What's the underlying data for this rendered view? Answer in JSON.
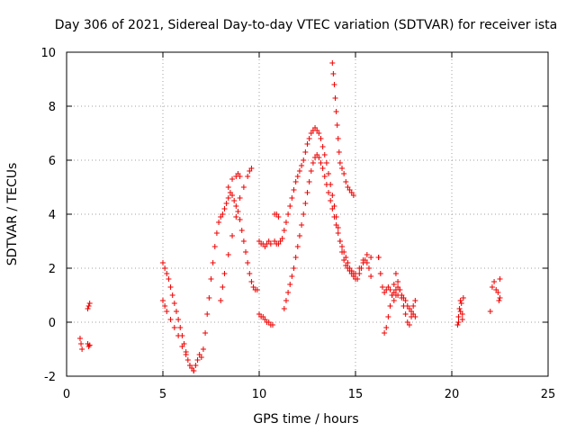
{
  "chart_data": {
    "type": "scatter",
    "title": "Day 306 of 2021, Sidereal Day-to-day VTEC variation (SDTVAR) for receiver ista",
    "xlabel": "GPS time / hours",
    "ylabel": "SDTVAR / TECUs",
    "xlim": [
      0,
      25
    ],
    "ylim": [
      -2,
      10
    ],
    "xticks": [
      "0",
      "5",
      "10",
      "15",
      "20",
      "25"
    ],
    "yticks": [
      "-2",
      "0",
      "2",
      "4",
      "6",
      "8",
      "10"
    ],
    "grid": true,
    "marker": "+",
    "series": [
      {
        "name": "SDTVAR",
        "color": "#ee0000",
        "x": [
          0.7,
          0.75,
          0.8,
          1.1,
          1.15,
          1.2,
          1.1,
          1.15,
          1.2,
          5.0,
          5.1,
          5.2,
          5.3,
          5.4,
          5.5,
          5.6,
          5.7,
          5.8,
          5.9,
          6.0,
          6.1,
          6.2,
          6.3,
          6.4,
          6.5,
          6.6,
          6.7,
          6.8,
          6.9,
          7.0,
          7.1,
          7.2,
          7.3,
          7.4,
          7.5,
          7.6,
          7.7,
          7.8,
          7.9,
          8.0,
          8.1,
          8.2,
          8.3,
          8.4,
          8.5,
          8.6,
          8.7,
          8.8,
          8.9,
          9.0,
          9.1,
          9.2,
          9.3,
          9.4,
          9.5,
          9.6,
          9.7,
          9.8,
          9.9,
          10.0,
          10.1,
          10.2,
          10.3,
          10.4,
          10.5,
          10.6,
          10.7,
          5.0,
          5.1,
          5.2,
          5.4,
          5.6,
          5.8,
          6.0,
          6.2,
          6.4,
          6.6,
          8.0,
          8.1,
          8.2,
          8.4,
          8.6,
          8.8,
          9.0,
          9.2,
          9.4,
          9.5,
          9.6,
          8.4,
          8.6,
          8.8,
          8.9,
          9.0,
          10.0,
          10.1,
          10.2,
          10.3,
          10.4,
          10.5,
          10.6,
          10.8,
          10.9,
          11.0,
          10.8,
          10.9,
          11.0,
          11.1,
          11.2,
          11.3,
          11.4,
          11.5,
          11.6,
          11.7,
          11.8,
          11.9,
          12.0,
          12.1,
          12.2,
          12.3,
          12.4,
          12.5,
          12.6,
          12.7,
          12.8,
          12.9,
          13.0,
          13.1,
          13.2,
          13.3,
          13.4,
          13.5,
          13.6,
          13.7,
          13.8,
          13.9,
          14.0,
          14.1,
          14.2,
          14.3,
          14.4,
          14.5,
          14.6,
          14.7,
          14.8,
          14.9,
          15.0,
          15.1,
          15.2,
          15.3,
          15.4,
          15.5,
          15.6,
          15.7,
          15.8,
          11.3,
          11.4,
          11.5,
          11.6,
          11.7,
          11.8,
          11.9,
          12.0,
          12.1,
          12.2,
          12.3,
          12.4,
          12.5,
          12.6,
          12.7,
          12.8,
          12.9,
          13.0,
          13.1,
          13.2,
          13.3,
          13.4,
          13.5,
          13.6,
          13.7,
          13.8,
          13.9,
          14.0,
          14.1,
          14.2,
          14.3,
          14.4,
          14.5,
          14.6,
          14.7,
          14.8,
          14.9,
          15.0,
          15.2,
          15.4,
          15.6,
          15.8,
          13.8,
          13.85,
          13.9,
          13.95,
          14.0,
          14.05,
          14.1,
          14.15,
          14.2,
          14.3,
          14.4,
          14.5,
          14.6,
          14.7,
          14.8,
          14.9,
          16.2,
          16.3,
          16.4,
          16.5,
          16.6,
          16.7,
          16.8,
          16.9,
          17.0,
          17.1,
          17.2,
          17.3,
          17.4,
          17.5,
          17.6,
          17.7,
          17.8,
          17.9,
          18.0,
          18.1,
          16.5,
          16.6,
          16.7,
          16.8,
          16.9,
          17.0,
          17.1,
          17.2,
          17.3,
          17.4,
          17.5,
          17.6,
          17.7,
          17.8,
          17.9,
          18.0,
          18.1,
          17.0,
          17.1,
          17.2,
          16.2,
          20.3,
          20.35,
          20.4,
          20.45,
          20.5,
          20.55,
          20.6,
          20.35,
          20.45,
          20.55,
          22.0,
          22.1,
          22.2,
          22.3,
          22.4,
          22.45,
          22.5,
          22.5
        ],
        "y": [
          -0.6,
          -0.8,
          -1.0,
          -0.8,
          -0.9,
          -0.85,
          0.5,
          0.6,
          0.7,
          2.2,
          2.0,
          1.8,
          1.6,
          1.3,
          1.0,
          0.7,
          0.4,
          0.1,
          -0.2,
          -0.5,
          -0.8,
          -1.1,
          -1.4,
          -1.6,
          -1.7,
          -1.8,
          -1.6,
          -1.4,
          -1.2,
          -1.3,
          -1.0,
          -0.4,
          0.3,
          0.9,
          1.6,
          2.2,
          2.8,
          3.3,
          3.7,
          3.9,
          4.0,
          4.2,
          4.4,
          4.6,
          4.8,
          4.7,
          4.5,
          4.3,
          4.1,
          3.8,
          3.4,
          3.0,
          2.6,
          2.2,
          1.8,
          1.5,
          1.3,
          1.2,
          1.2,
          0.3,
          0.2,
          0.2,
          0.1,
          0.0,
          0.0,
          -0.1,
          -0.1,
          0.8,
          0.6,
          0.4,
          0.1,
          -0.2,
          -0.5,
          -0.9,
          -1.2,
          -1.6,
          -1.8,
          0.8,
          1.3,
          1.8,
          2.5,
          3.2,
          3.9,
          4.6,
          5.0,
          5.4,
          5.6,
          5.7,
          5.0,
          5.3,
          5.4,
          5.5,
          5.4,
          3.0,
          2.9,
          2.9,
          2.8,
          2.9,
          3.0,
          2.9,
          4.0,
          4.0,
          3.9,
          3.0,
          2.9,
          2.9,
          3.0,
          3.1,
          3.4,
          3.7,
          4.0,
          4.3,
          4.6,
          4.9,
          5.2,
          5.4,
          5.6,
          5.8,
          6.0,
          6.3,
          6.6,
          6.8,
          7.0,
          7.1,
          7.2,
          7.1,
          7.0,
          6.8,
          6.5,
          6.2,
          5.9,
          5.5,
          5.1,
          4.7,
          4.3,
          3.9,
          3.5,
          3.0,
          2.6,
          2.3,
          2.1,
          2.0,
          1.9,
          1.8,
          1.7,
          1.6,
          1.6,
          1.8,
          2.0,
          2.2,
          2.3,
          2.2,
          2.0,
          1.7,
          0.5,
          0.8,
          1.1,
          1.4,
          1.7,
          2.0,
          2.4,
          2.8,
          3.2,
          3.6,
          4.0,
          4.4,
          4.8,
          5.2,
          5.6,
          5.9,
          6.1,
          6.2,
          6.1,
          5.9,
          5.7,
          5.4,
          5.1,
          4.8,
          4.5,
          4.2,
          3.9,
          3.6,
          3.3,
          3.0,
          2.8,
          2.6,
          2.4,
          2.2,
          2.0,
          1.9,
          1.8,
          1.8,
          2.0,
          2.3,
          2.5,
          2.4,
          9.6,
          9.2,
          8.8,
          8.3,
          7.8,
          7.3,
          6.8,
          6.3,
          5.9,
          5.7,
          5.5,
          5.2,
          5.0,
          4.9,
          4.8,
          4.7,
          2.4,
          1.8,
          1.3,
          1.1,
          1.2,
          1.3,
          1.2,
          1.0,
          0.8,
          1.0,
          1.3,
          1.2,
          1.0,
          0.9,
          0.8,
          0.6,
          0.5,
          0.4,
          0.3,
          0.2,
          -0.4,
          -0.2,
          0.2,
          0.6,
          1.0,
          1.4,
          1.8,
          1.5,
          1.2,
          0.9,
          0.6,
          0.3,
          0.0,
          -0.1,
          0.2,
          0.6,
          0.8,
          1.1,
          1.2,
          1.0,
          2.4,
          -0.1,
          0.2,
          0.5,
          0.8,
          0.7,
          0.3,
          0.9,
          0.0,
          0.4,
          0.1,
          0.4,
          1.3,
          1.5,
          1.2,
          1.1,
          0.8,
          1.6,
          0.9
        ]
      }
    ]
  }
}
